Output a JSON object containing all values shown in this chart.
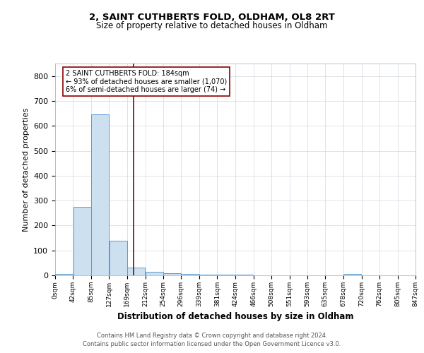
{
  "title": "2, SAINT CUTHBERTS FOLD, OLDHAM, OL8 2RT",
  "subtitle": "Size of property relative to detached houses in Oldham",
  "xlabel": "Distribution of detached houses by size in Oldham",
  "ylabel": "Number of detached properties",
  "footnote1": "Contains HM Land Registry data © Crown copyright and database right 2024.",
  "footnote2": "Contains public sector information licensed under the Open Government Licence v3.0.",
  "annotation_line1": "2 SAINT CUTHBERTS FOLD: 184sqm",
  "annotation_line2": "← 93% of detached houses are smaller (1,070)",
  "annotation_line3": "6% of semi-detached houses are larger (74) →",
  "bin_edges": [
    0,
    42,
    85,
    127,
    169,
    212,
    254,
    296,
    339,
    381,
    424,
    466,
    508,
    551,
    593,
    635,
    678,
    720,
    762,
    805,
    847
  ],
  "bin_counts": [
    5,
    275,
    645,
    140,
    30,
    15,
    8,
    5,
    4,
    3,
    4,
    0,
    0,
    0,
    0,
    0,
    5,
    0,
    0,
    0
  ],
  "bar_color": "#cce0f0",
  "bar_edge_color": "#5b9bd5",
  "vline_color": "#8b0000",
  "vline_x": 184,
  "ylim": [
    0,
    850
  ],
  "yticks": [
    0,
    100,
    200,
    300,
    400,
    500,
    600,
    700,
    800
  ],
  "bg_color": "#ffffff",
  "grid_color": "#d0d8e0"
}
